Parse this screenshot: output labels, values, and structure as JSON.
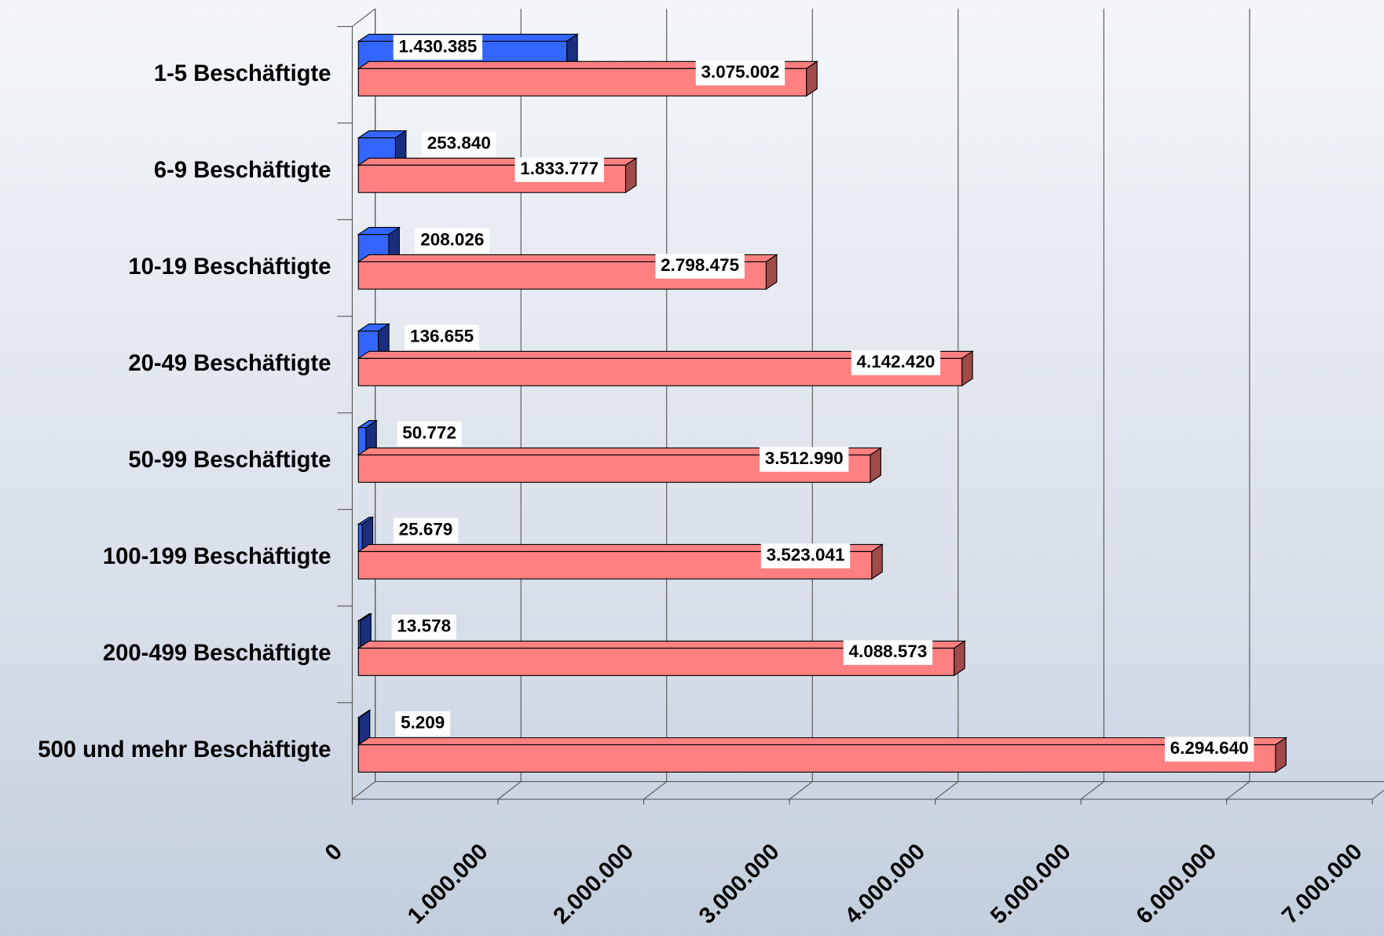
{
  "chart_data": {
    "type": "bar",
    "orientation": "horizontal",
    "categories": [
      "1-5 Beschäftigte",
      "6-9 Beschäftigte",
      "10-19 Beschäftigte",
      "20-49 Beschäftigte",
      "50-99 Beschäftigte",
      "100-199 Beschäftigte",
      "200-499 Beschäftigte",
      "500 und mehr Beschäftigte"
    ],
    "series": [
      {
        "color": "#3366ff",
        "values": [
          1430385,
          253840,
          208026,
          136655,
          50772,
          25679,
          13578,
          5209
        ],
        "value_labels": [
          "1.430.385",
          "253.840",
          "208.026",
          "136.655",
          "50.772",
          "25.679",
          "13.578",
          "5.209"
        ]
      },
      {
        "color": "#ff8080",
        "values": [
          3075002,
          1833777,
          2798475,
          4142420,
          3512990,
          3523041,
          4088573,
          6294640
        ],
        "value_labels": [
          "3.075.002",
          "1.833.777",
          "2.798.475",
          "4.142.420",
          "3.512.990",
          "3.523.041",
          "4.088.573",
          "6.294.640"
        ]
      }
    ],
    "xlim": [
      0,
      7000000
    ],
    "xticks": [
      0,
      {
        "value": 1000000,
        "label": "1.000.000"
      },
      {
        "value": 2000000,
        "label": "2.000.000"
      },
      {
        "value": 3000000,
        "label": "3.000.000"
      },
      {
        "value": 4000000,
        "label": "4.000.000"
      },
      {
        "value": 5000000,
        "label": "5.000.000"
      },
      {
        "value": 6000000,
        "label": "6.000.000"
      },
      {
        "value": 7000000,
        "label": "7.000.000"
      }
    ],
    "grid": true
  }
}
